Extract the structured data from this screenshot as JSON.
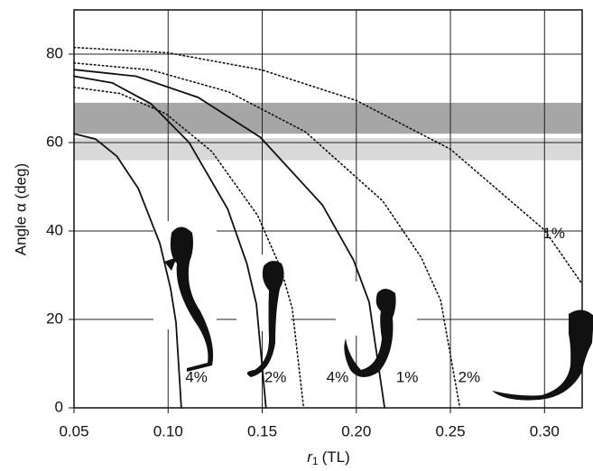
{
  "chart_data": {
    "type": "line",
    "y_label": "Angle α (deg)",
    "x_label": {
      "symbol": "r",
      "subscript": "1",
      "unit": "(TL)"
    },
    "xlim": [
      0.05,
      0.32
    ],
    "ylim": [
      0,
      90
    ],
    "xticks": [
      {
        "value": 0.05,
        "label": "0.05"
      },
      {
        "value": 0.1,
        "label": "0.10"
      },
      {
        "value": 0.15,
        "label": "0.15"
      },
      {
        "value": 0.2,
        "label": "0.20"
      },
      {
        "value": 0.25,
        "label": "0.25"
      },
      {
        "value": 0.3,
        "label": "0.30"
      }
    ],
    "yticks": [
      0,
      20,
      40,
      60,
      80
    ],
    "grid": true,
    "bands": [
      {
        "range": [
          62,
          69
        ],
        "color": "#a6a6a6"
      },
      {
        "range": [
          56,
          61
        ],
        "color": "#d9d9d9"
      }
    ],
    "series": [
      {
        "color": "#111111",
        "style": "solid",
        "x": [
          0.05,
          0.0614,
          0.0728,
          0.0842,
          0.0956,
          0.1013,
          0.1042,
          0.107
        ],
        "values": [
          62,
          60.8,
          56.9,
          49.6,
          37.2,
          27.0,
          19.3,
          0
        ]
      },
      {
        "color": "#111111",
        "style": "dotted",
        "x": [
          0.05,
          0.0744,
          0.0988,
          0.1232,
          0.1476,
          0.1598,
          0.1659,
          0.172
        ],
        "values": [
          72.5,
          71.1,
          66.5,
          58,
          43.5,
          31.6,
          22.6,
          0
        ]
      },
      {
        "color": "#111111",
        "style": "solid",
        "x": [
          0.05,
          0.0704,
          0.0908,
          0.1112,
          0.1316,
          0.1418,
          0.1469,
          0.152
        ],
        "values": [
          75,
          73.5,
          68.8,
          60,
          45,
          32.7,
          23.4,
          0
        ]
      },
      {
        "color": "#111111",
        "style": "solid",
        "x": [
          0.05,
          0.083,
          0.116,
          0.149,
          0.182,
          0.1985,
          0.2068,
          0.215
        ],
        "values": [
          76.5,
          75,
          70.2,
          61.2,
          45.9,
          33.4,
          23.9,
          0
        ]
      },
      {
        "color": "#111111",
        "style": "dotted",
        "x": [
          0.05,
          0.091,
          0.132,
          0.173,
          0.214,
          0.2345,
          0.2448,
          0.255
        ],
        "values": [
          78,
          76.4,
          71.5,
          62.4,
          46.8,
          34,
          24.3,
          0
        ]
      },
      {
        "color": "#111111",
        "style": "dotted",
        "x": [
          0.05,
          0.1,
          0.15,
          0.2,
          0.25,
          0.3,
          0.32
        ],
        "values": [
          81.5,
          80.3,
          76.4,
          69.5,
          58.5,
          40.2,
          28
        ]
      }
    ],
    "annotations": [
      {
        "text": "4%",
        "x": 0.115,
        "y": 3.5
      },
      {
        "text": "2%",
        "x": 0.157,
        "y": 3.5
      },
      {
        "text": "4%",
        "x": 0.19,
        "y": 3.5
      },
      {
        "text": "1%",
        "x": 0.227,
        "y": 3.5
      },
      {
        "text": "2%",
        "x": 0.26,
        "y": 3.5
      },
      {
        "text": "1%",
        "x": 0.305,
        "y": 36
      }
    ]
  }
}
